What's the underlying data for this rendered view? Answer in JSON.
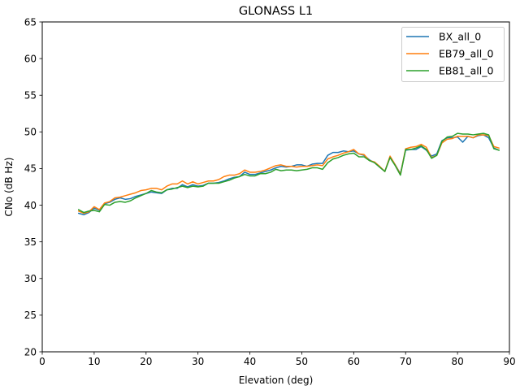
{
  "chart_data": {
    "type": "line",
    "title": "GLONASS L1",
    "xlabel": "Elevation (deg)",
    "ylabel": "CNo (dB Hz)",
    "xlim": [
      0,
      90
    ],
    "ylim": [
      20,
      65
    ],
    "xticks": [
      0,
      10,
      20,
      30,
      40,
      50,
      60,
      70,
      80,
      90
    ],
    "yticks": [
      20,
      25,
      30,
      35,
      40,
      45,
      50,
      55,
      60,
      65
    ],
    "grid": false,
    "legend_position": "top-right",
    "x": [
      7,
      8,
      9,
      10,
      11,
      12,
      13,
      14,
      15,
      16,
      17,
      18,
      19,
      20,
      21,
      22,
      23,
      24,
      25,
      26,
      27,
      28,
      29,
      30,
      31,
      32,
      33,
      34,
      35,
      36,
      37,
      38,
      39,
      40,
      41,
      42,
      43,
      44,
      45,
      46,
      47,
      48,
      49,
      50,
      51,
      52,
      53,
      54,
      55,
      56,
      57,
      58,
      59,
      60,
      61,
      62,
      63,
      64,
      65,
      66,
      67,
      68,
      69,
      70,
      71,
      72,
      73,
      74,
      75,
      76,
      77,
      78,
      79,
      80,
      81,
      82,
      83,
      84,
      85,
      86,
      87,
      88
    ],
    "series": [
      {
        "name": "BX_all_0",
        "color": "#1f77b4",
        "values": [
          38.9,
          38.7,
          39.0,
          39.6,
          39.3,
          40.2,
          40.4,
          40.8,
          41.0,
          40.8,
          40.9,
          41.2,
          41.4,
          41.6,
          41.8,
          41.7,
          41.6,
          42.1,
          42.3,
          42.3,
          42.8,
          42.5,
          42.8,
          42.6,
          42.7,
          43.0,
          43.0,
          43.1,
          43.3,
          43.6,
          43.8,
          43.9,
          44.5,
          44.2,
          44.2,
          44.4,
          44.6,
          44.8,
          45.1,
          45.3,
          45.2,
          45.3,
          45.5,
          45.5,
          45.3,
          45.6,
          45.7,
          45.7,
          46.8,
          47.2,
          47.2,
          47.4,
          47.3,
          47.4,
          47.0,
          46.8,
          46.2,
          45.8,
          45.2,
          44.6,
          46.6,
          45.5,
          44.3,
          47.5,
          47.6,
          47.6,
          48.0,
          47.5,
          46.7,
          47.0,
          48.8,
          49.2,
          49.2,
          49.3,
          48.6,
          49.4,
          49.2,
          49.5,
          49.6,
          49.2,
          47.8,
          47.5
        ]
      },
      {
        "name": "EB79_all_0",
        "color": "#ff7f0e",
        "values": [
          39.2,
          38.9,
          39.1,
          39.8,
          39.4,
          40.3,
          40.5,
          41.0,
          41.1,
          41.3,
          41.5,
          41.7,
          42.0,
          42.1,
          42.3,
          42.3,
          42.1,
          42.6,
          42.9,
          42.9,
          43.3,
          42.9,
          43.2,
          42.9,
          43.1,
          43.3,
          43.3,
          43.5,
          43.9,
          44.1,
          44.1,
          44.3,
          44.8,
          44.5,
          44.5,
          44.6,
          44.8,
          45.1,
          45.4,
          45.5,
          45.3,
          45.3,
          45.2,
          45.3,
          45.3,
          45.4,
          45.5,
          45.4,
          46.3,
          46.6,
          46.8,
          47.1,
          47.3,
          47.6,
          47.0,
          46.9,
          46.1,
          45.9,
          45.3,
          44.6,
          46.7,
          45.5,
          44.2,
          47.7,
          47.9,
          48.0,
          48.3,
          47.9,
          46.5,
          46.8,
          48.5,
          49.0,
          49.1,
          49.4,
          49.4,
          49.4,
          49.2,
          49.6,
          49.6,
          49.5,
          48.0,
          47.8
        ]
      },
      {
        "name": "EB81_all_0",
        "color": "#2ca02c",
        "values": [
          39.4,
          39.0,
          39.2,
          39.3,
          39.1,
          40.1,
          40.0,
          40.4,
          40.5,
          40.4,
          40.6,
          41.0,
          41.3,
          41.6,
          42.0,
          41.8,
          41.7,
          42.1,
          42.2,
          42.4,
          42.6,
          42.4,
          42.6,
          42.5,
          42.6,
          43.0,
          43.0,
          43.0,
          43.2,
          43.4,
          43.7,
          43.9,
          44.2,
          44.0,
          44.0,
          44.3,
          44.3,
          44.5,
          44.9,
          44.7,
          44.8,
          44.8,
          44.7,
          44.8,
          44.9,
          45.1,
          45.1,
          44.9,
          45.8,
          46.3,
          46.5,
          46.8,
          47.0,
          47.1,
          46.6,
          46.6,
          46.1,
          45.8,
          45.2,
          44.6,
          46.5,
          45.4,
          44.1,
          47.6,
          47.6,
          47.8,
          48.1,
          47.6,
          46.4,
          46.8,
          48.7,
          49.3,
          49.4,
          49.8,
          49.7,
          49.7,
          49.6,
          49.7,
          49.8,
          49.6,
          47.7,
          47.5
        ]
      }
    ]
  }
}
